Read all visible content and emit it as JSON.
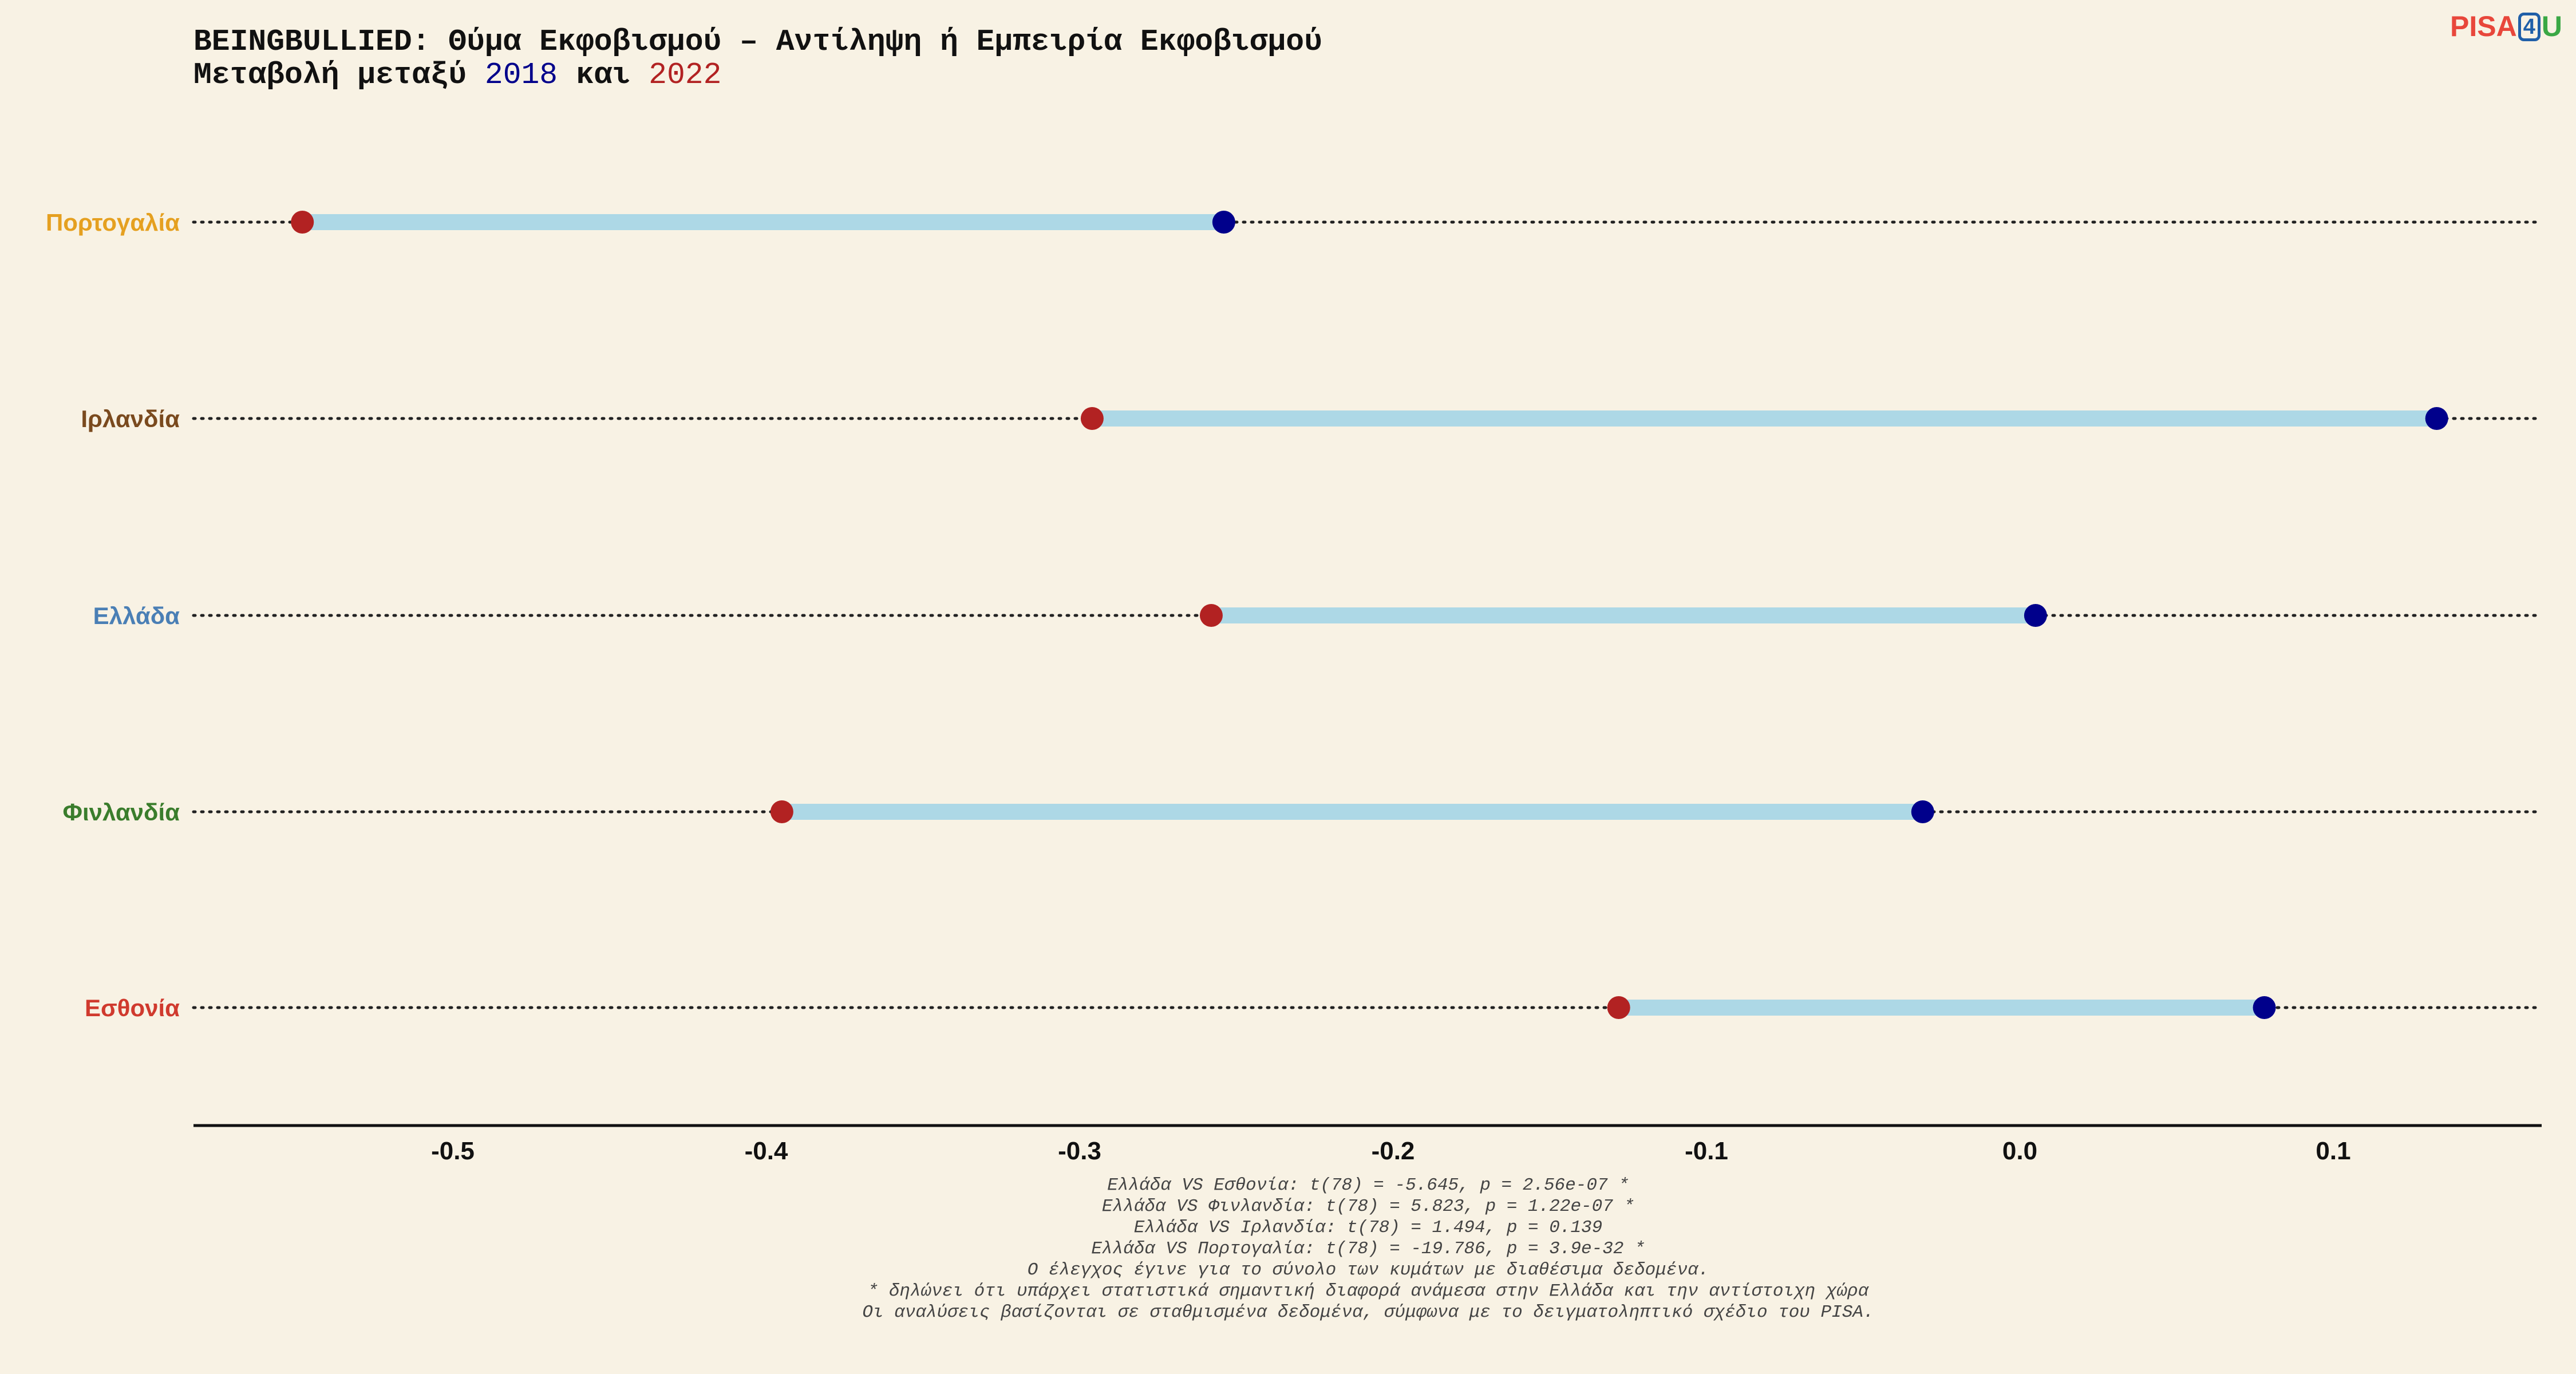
{
  "title": {
    "line1": "BEINGBULLIED: Θύμα Εκφοβισμού – Αντίληψη ή Εμπειρία Εκφοβισμού",
    "line2_prefix": "Μεταβολή μεταξύ ",
    "year_a": "2018",
    "line2_mid": " και ",
    "year_b": "2022"
  },
  "logo": {
    "pisa": "PISA",
    "four": "4",
    "u": "U"
  },
  "colors": {
    "year_2018": "#00008b",
    "year_2022": "#b22222",
    "segment": "#add8e6",
    "background": "#f8f2e4"
  },
  "chart_data": {
    "type": "dumbbell",
    "x_ticks": [
      "-0.5",
      "-0.4",
      "-0.3",
      "-0.2",
      "-0.1",
      "0.0",
      "0.1"
    ],
    "xlim": [
      -0.58,
      0.17
    ],
    "grid": false,
    "rows": [
      {
        "country": "Πορτογαλία",
        "color": "#e5a020",
        "v2018": -0.254,
        "v2022": -0.548
      },
      {
        "country": "Ιρλανδία",
        "color": "#7a4a1e",
        "v2018": 0.133,
        "v2022": -0.296
      },
      {
        "country": "Ελλάδα",
        "color": "#4a7fb5",
        "v2018": 0.005,
        "v2022": -0.258
      },
      {
        "country": "Φινλανδία",
        "color": "#3a7d2c",
        "v2018": -0.031,
        "v2022": -0.395
      },
      {
        "country": "Εσθονία",
        "color": "#d03a2e",
        "v2018": 0.078,
        "v2022": -0.128
      }
    ]
  },
  "notes": [
    "Ελλάδα VS Εσθονία: t(78) = -5.645, p = 2.56e-07 *",
    "Ελλάδα VS Φινλανδία: t(78) = 5.823, p = 1.22e-07 *",
    "Ελλάδα VS Ιρλανδία: t(78) = 1.494, p = 0.139",
    "Ελλάδα VS Πορτογαλία: t(78) = -19.786, p = 3.9e-32 *",
    "Ο έλεγχος έγινε για το σύνολο των κυμάτων με διαθέσιμα δεδομένα.",
    "* δηλώνει ότι υπάρχει στατιστικά σημαντική διαφορά ανάμεσα στην Ελλάδα και την αντίστοιχη χώρα",
    "Οι αναλύσεις βασίζονται σε σταθμισμένα δεδομένα, σύμφωνα με το δειγματοληπτικό σχέδιο του PISA."
  ]
}
